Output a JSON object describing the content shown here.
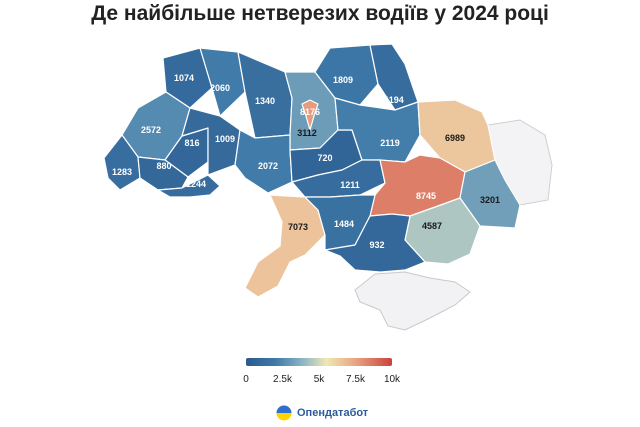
{
  "title": "Де найбільше нетверезих водіїв у 2024 році",
  "legend": {
    "ticks": [
      "0",
      "2.5k",
      "5k",
      "7.5k",
      "10k"
    ],
    "range": [
      0,
      10000
    ],
    "colors": [
      "#2b5a8e",
      "#3e79a8",
      "#93b8c6",
      "#efe7b5",
      "#e9a483",
      "#c8423b"
    ]
  },
  "brand": {
    "name": "Опендатабот",
    "logo_icon": "opendatabot-logo-icon"
  },
  "regions": [
    {
      "id": "volyn",
      "value": 1074
    },
    {
      "id": "rivne",
      "value": 2060
    },
    {
      "id": "zhytomyr",
      "value": 1340
    },
    {
      "id": "kyiv-oblast",
      "value": 3112
    },
    {
      "id": "kyiv-city",
      "value": 8176
    },
    {
      "id": "chernihiv",
      "value": 1809
    },
    {
      "id": "sumy",
      "value": 1194
    },
    {
      "id": "lviv",
      "value": 2572
    },
    {
      "id": "ternopil",
      "value": 816
    },
    {
      "id": "khmelnytskyi",
      "value": 1009
    },
    {
      "id": "vinnytsia",
      "value": 2072
    },
    {
      "id": "cherkasy",
      "value": 720
    },
    {
      "id": "poltava",
      "value": 2119
    },
    {
      "id": "kharkiv",
      "value": 6989
    },
    {
      "id": "zakarpattia",
      "value": 1283
    },
    {
      "id": "ivano-frankivsk",
      "value": 880
    },
    {
      "id": "chernivtsi",
      "value": 1244
    },
    {
      "id": "kirovohrad",
      "value": 1211
    },
    {
      "id": "dnipropetrovsk",
      "value": 8745
    },
    {
      "id": "luhansk",
      "value": 3201
    },
    {
      "id": "odesa",
      "value": 7073
    },
    {
      "id": "mykolaiv",
      "value": 1484
    },
    {
      "id": "zaporizhzhia",
      "value": 4587
    },
    {
      "id": "kherson",
      "value": 932
    }
  ]
}
